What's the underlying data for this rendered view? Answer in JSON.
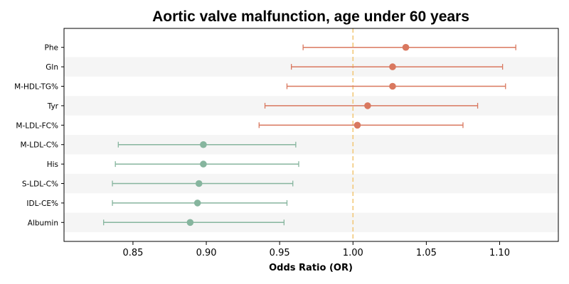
{
  "chart_data": {
    "type": "forest",
    "title": "Aortic valve malfunction, age under 60 years",
    "xlabel": "Odds Ratio (OR)",
    "ylabel": "",
    "xlim": [
      0.803,
      1.14
    ],
    "xticks": [
      "0.85",
      "0.90",
      "0.95",
      "1.00",
      "1.05",
      "1.10"
    ],
    "reference_line": 1.0,
    "grid": false,
    "colors": {
      "positive": "#d9785f",
      "negative": "#86b59e",
      "reference": "#f2c879",
      "band": "#f5f5f5"
    },
    "categories": [
      "Phe",
      "Gln",
      "M-HDL-TG%",
      "Tyr",
      "M-LDL-FC%",
      "M-LDL-C%",
      "His",
      "S-LDL-C%",
      "IDL-CE%",
      "Albumin"
    ],
    "points": [
      {
        "label": "Phe",
        "or": 1.036,
        "lower": 0.966,
        "upper": 1.111
      },
      {
        "label": "Gln",
        "or": 1.027,
        "lower": 0.958,
        "upper": 1.102
      },
      {
        "label": "M-HDL-TG%",
        "or": 1.027,
        "lower": 0.955,
        "upper": 1.104
      },
      {
        "label": "Tyr",
        "or": 1.01,
        "lower": 0.94,
        "upper": 1.085
      },
      {
        "label": "M-LDL-FC%",
        "or": 1.003,
        "lower": 0.936,
        "upper": 1.075
      },
      {
        "label": "M-LDL-C%",
        "or": 0.898,
        "lower": 0.84,
        "upper": 0.961
      },
      {
        "label": "His",
        "or": 0.898,
        "lower": 0.838,
        "upper": 0.963
      },
      {
        "label": "S-LDL-C%",
        "or": 0.895,
        "lower": 0.836,
        "upper": 0.959
      },
      {
        "label": "IDL-CE%",
        "or": 0.894,
        "lower": 0.836,
        "upper": 0.955
      },
      {
        "label": "Albumin",
        "or": 0.889,
        "lower": 0.83,
        "upper": 0.953
      }
    ]
  }
}
